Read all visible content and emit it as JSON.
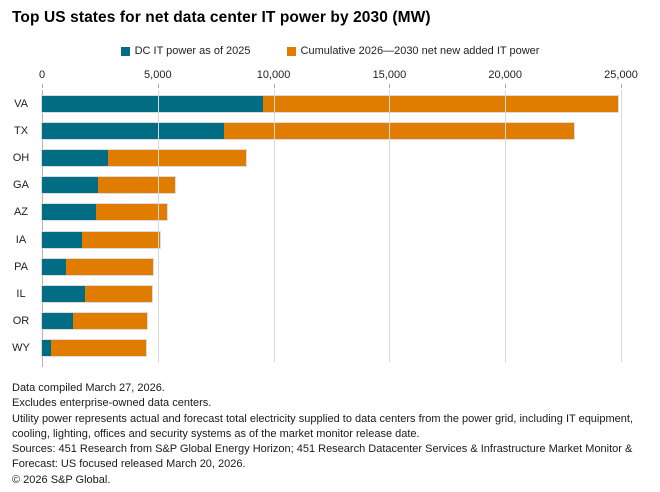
{
  "title": "Top US states for net data center IT power by 2030 (MW)",
  "legend": [
    {
      "label": "DC IT power as of 2025",
      "color": "#006D84"
    },
    {
      "label": "Cumulative 2026—2030 net new added IT power",
      "color": "#E07D00"
    }
  ],
  "chart_data": {
    "type": "bar",
    "orientation": "horizontal",
    "stacked": true,
    "title": "Top US states for net data center IT power by 2030 (MW)",
    "categories": [
      "VA",
      "TX",
      "OH",
      "GA",
      "AZ",
      "IA",
      "PA",
      "IL",
      "OR",
      "WY"
    ],
    "series": [
      {
        "name": "DC IT power as of 2025",
        "color": "#006D84",
        "values": [
          9530,
          7870,
          2860,
          2430,
          2330,
          1740,
          1020,
          1860,
          1350,
          400
        ]
      },
      {
        "name": "Cumulative 2026—2030 net new added IT power",
        "color": "#E07D00",
        "values": [
          15340,
          15100,
          5940,
          3310,
          3080,
          3370,
          3760,
          2880,
          3170,
          4090
        ]
      }
    ],
    "stacked_totals": [
      24870,
      22970,
      8800,
      5740,
      5410,
      5110,
      4780,
      4740,
      4520,
      4490
    ],
    "xlim": [
      0,
      25000
    ],
    "x_ticks": [
      "0",
      "5,000",
      "10,000",
      "15,000",
      "20,000",
      "25,000"
    ],
    "xlabel": "",
    "ylabel": "",
    "grid": true,
    "gridline_color": "#d9d9d9",
    "legend_position": "top"
  },
  "footnotes": [
    "Data compiled March 27, 2026.",
    "Excludes enterprise-owned data centers.",
    "Utility power represents actual and forecast total electricity supplied to data centers from the power grid, including IT equipment, cooling, lighting, offices and security systems as of the market monitor release date.",
    "Sources: 451 Research from S&P Global Energy Horizon; 451 Research Datacenter Services & Infrastructure Market Monitor & Forecast: US focused released March 20, 2026.",
    "© 2026 S&P Global."
  ]
}
